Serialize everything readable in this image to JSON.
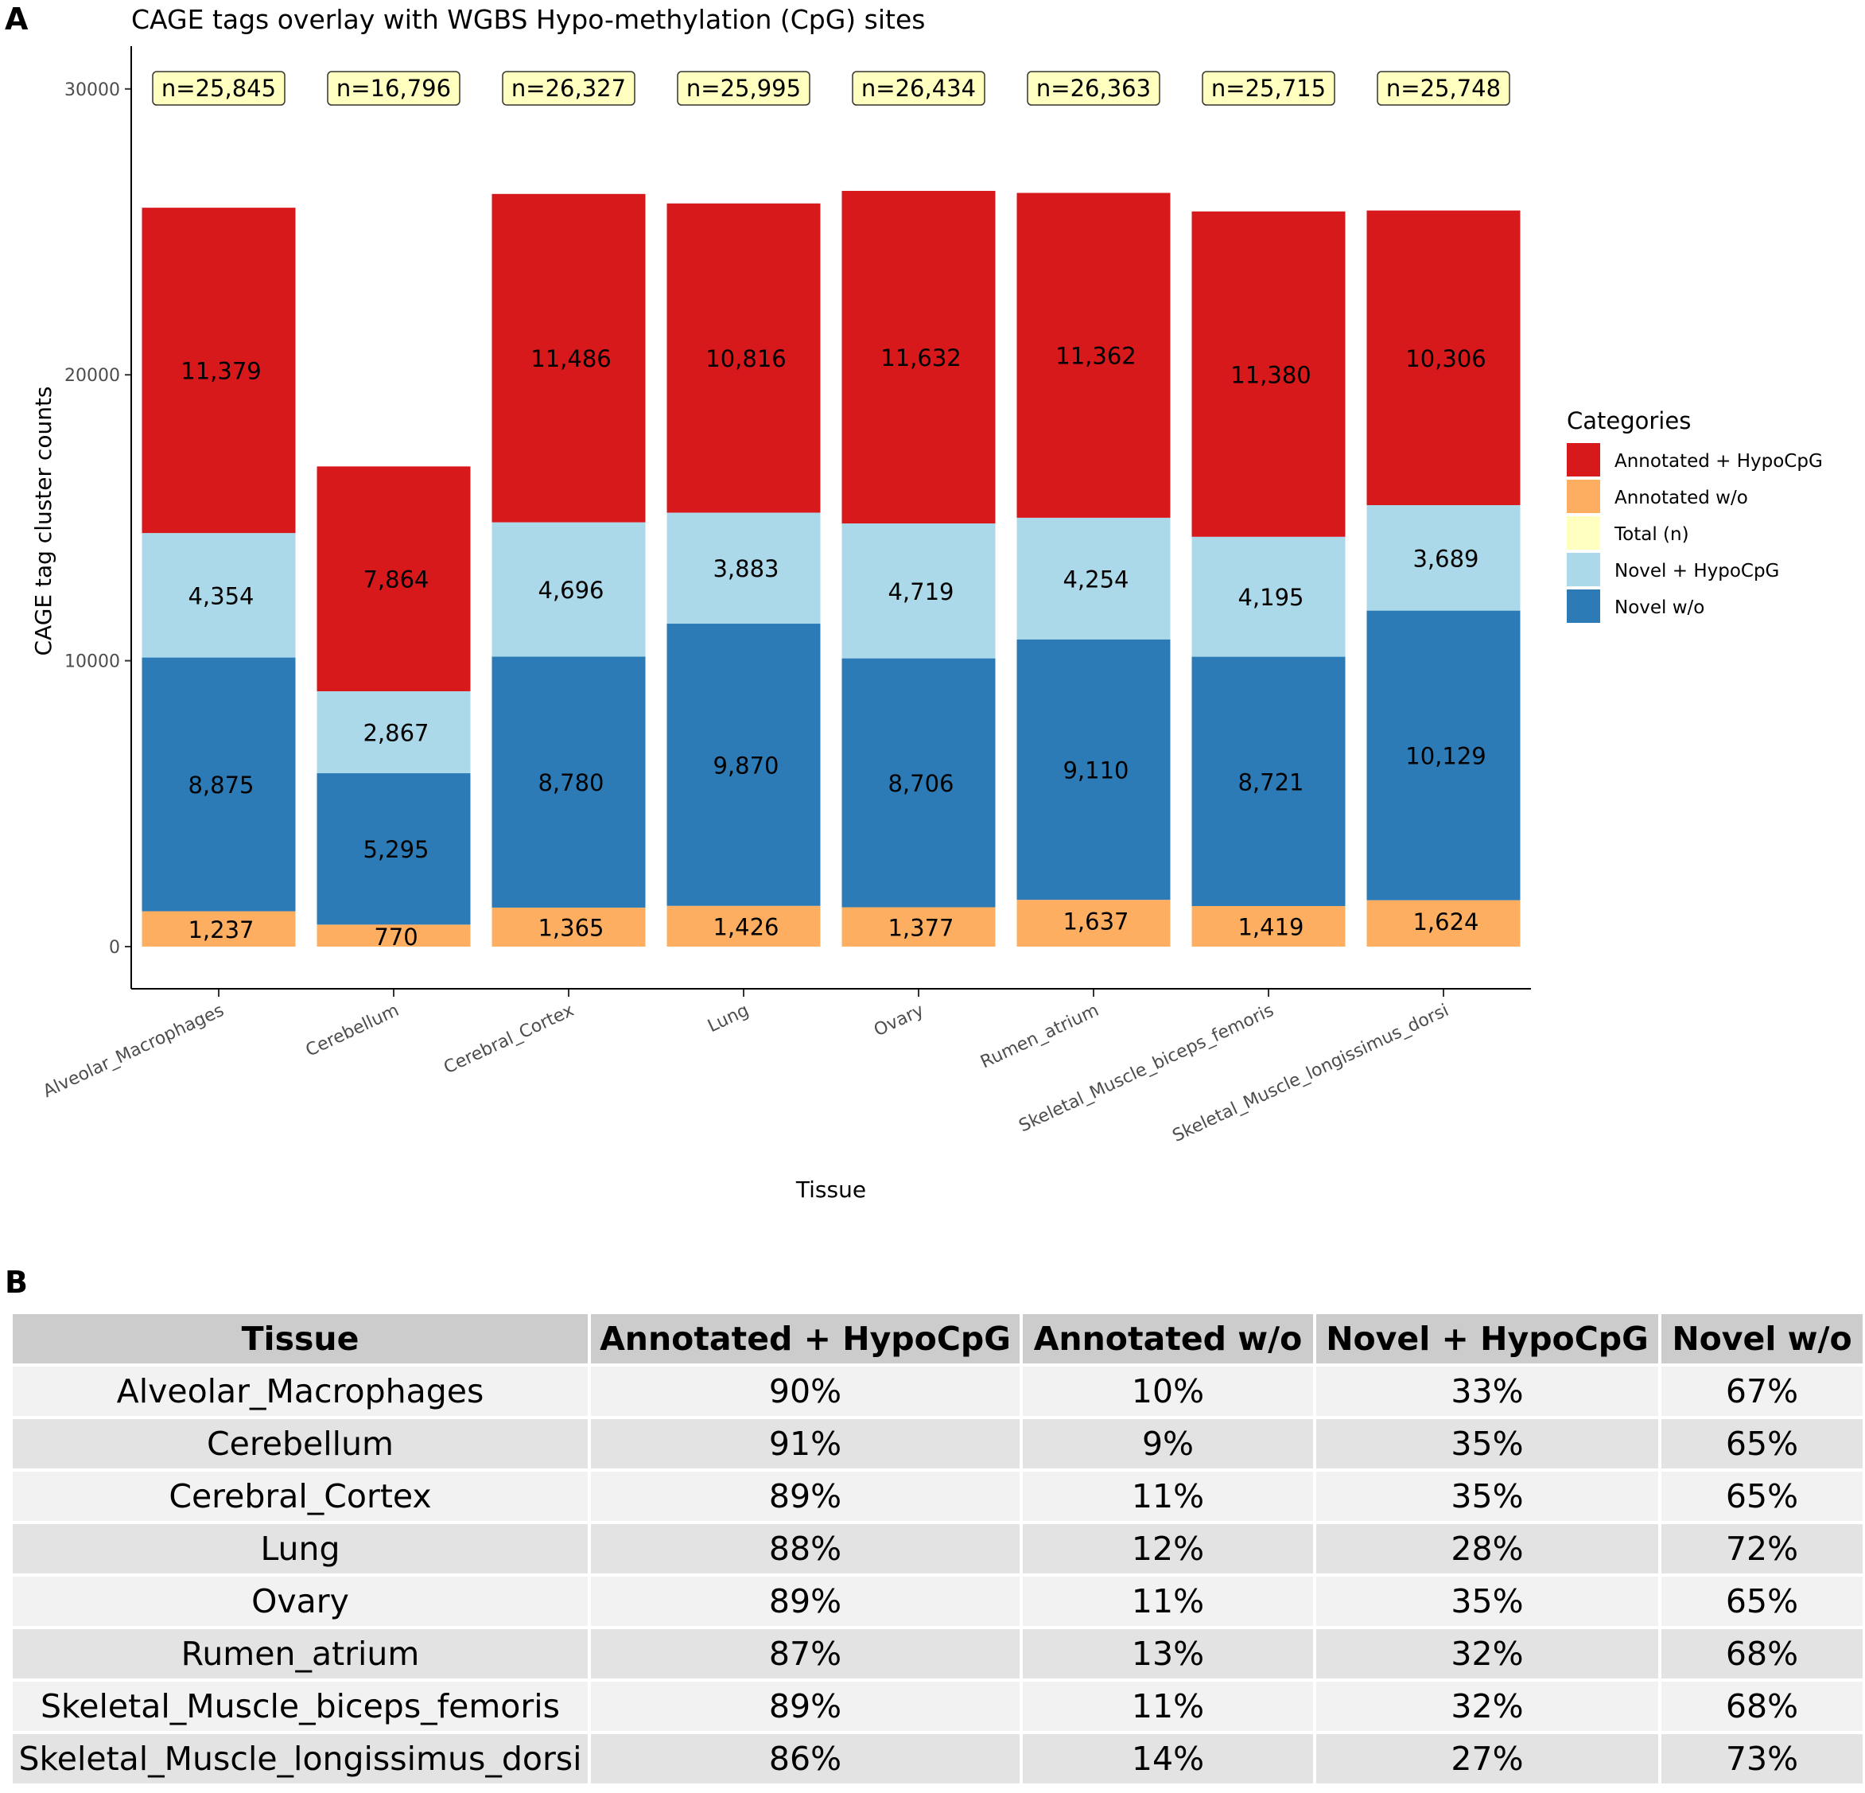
{
  "panels": {
    "a": "A",
    "b": "B"
  },
  "chart_data": {
    "type": "bar",
    "stacked": true,
    "title": "CAGE tags overlay with WGBS Hypo-methylation (CpG) sites",
    "xlabel": "Tissue",
    "ylabel": "CAGE tag cluster counts",
    "ylim": [
      0,
      31500
    ],
    "yticks": [
      0,
      10000,
      20000,
      30000
    ],
    "ytick_labels": [
      "0",
      "10000",
      "20000",
      "30000"
    ],
    "legend_title": "Categories",
    "legend_position": "right",
    "categories": [
      "Alveolar_Macrophages",
      "Cerebellum",
      "Cerebral_Cortex",
      "Lung",
      "Ovary",
      "Rumen_atrium",
      "Skeletal_Muscle_biceps_femoris",
      "Skeletal_Muscle_longissimus_dorsi"
    ],
    "series": [
      {
        "name": "Annotated w/o",
        "color": "#fdae61",
        "values": [
          1237,
          770,
          1365,
          1426,
          1377,
          1637,
          1419,
          1624
        ],
        "labels": [
          "1,237",
          "770",
          "1,365",
          "1,426",
          "1,377",
          "1,637",
          "1,419",
          "1,624"
        ]
      },
      {
        "name": "Novel w/o",
        "color": "#2c7bb6",
        "values": [
          8875,
          5295,
          8780,
          9870,
          8706,
          9110,
          8721,
          10129
        ],
        "labels": [
          "8,875",
          "5,295",
          "8,780",
          "9,870",
          "8,706",
          "9,110",
          "8,721",
          "10,129"
        ]
      },
      {
        "name": "Novel + HypoCpG",
        "color": "#abd9e9",
        "values": [
          4354,
          2867,
          4696,
          3883,
          4719,
          4254,
          4195,
          3689
        ],
        "labels": [
          "4,354",
          "2,867",
          "4,696",
          "3,883",
          "4,719",
          "4,254",
          "4,195",
          "3,689"
        ]
      },
      {
        "name": "Annotated + HypoCpG",
        "color": "#d7191c",
        "values": [
          11379,
          7864,
          11486,
          10816,
          11632,
          11362,
          11380,
          10306
        ],
        "labels": [
          "11,379",
          "7,864",
          "11,486",
          "10,816",
          "11,632",
          "11,362",
          "11,380",
          "10,306"
        ]
      }
    ],
    "totals": {
      "name": "Total (n)",
      "color": "#ffffbf",
      "values": [
        25845,
        16796,
        26327,
        25995,
        26434,
        26363,
        25715,
        25748
      ],
      "labels": [
        "n=25,845",
        "n=16,796",
        "n=26,327",
        "n=25,995",
        "n=26,434",
        "n=26,363",
        "n=25,715",
        "n=25,748"
      ]
    },
    "legend_order": [
      "Annotated + HypoCpG",
      "Annotated w/o",
      "Total (n)",
      "Novel + HypoCpG",
      "Novel w/o"
    ]
  },
  "table": {
    "headers": [
      "Tissue",
      "Annotated + HypoCpG",
      "Annotated w/o",
      "Novel + HypoCpG",
      "Novel w/o"
    ],
    "rows": [
      [
        "Alveolar_Macrophages",
        "90%",
        "10%",
        "33%",
        "67%"
      ],
      [
        "Cerebellum",
        "91%",
        "9%",
        "35%",
        "65%"
      ],
      [
        "Cerebral_Cortex",
        "89%",
        "11%",
        "35%",
        "65%"
      ],
      [
        "Lung",
        "88%",
        "12%",
        "28%",
        "72%"
      ],
      [
        "Ovary",
        "89%",
        "11%",
        "35%",
        "65%"
      ],
      [
        "Rumen_atrium",
        "87%",
        "13%",
        "32%",
        "68%"
      ],
      [
        "Skeletal_Muscle_biceps_femoris",
        "89%",
        "11%",
        "32%",
        "68%"
      ],
      [
        "Skeletal_Muscle_longissimus_dorsi",
        "86%",
        "14%",
        "27%",
        "73%"
      ]
    ]
  }
}
